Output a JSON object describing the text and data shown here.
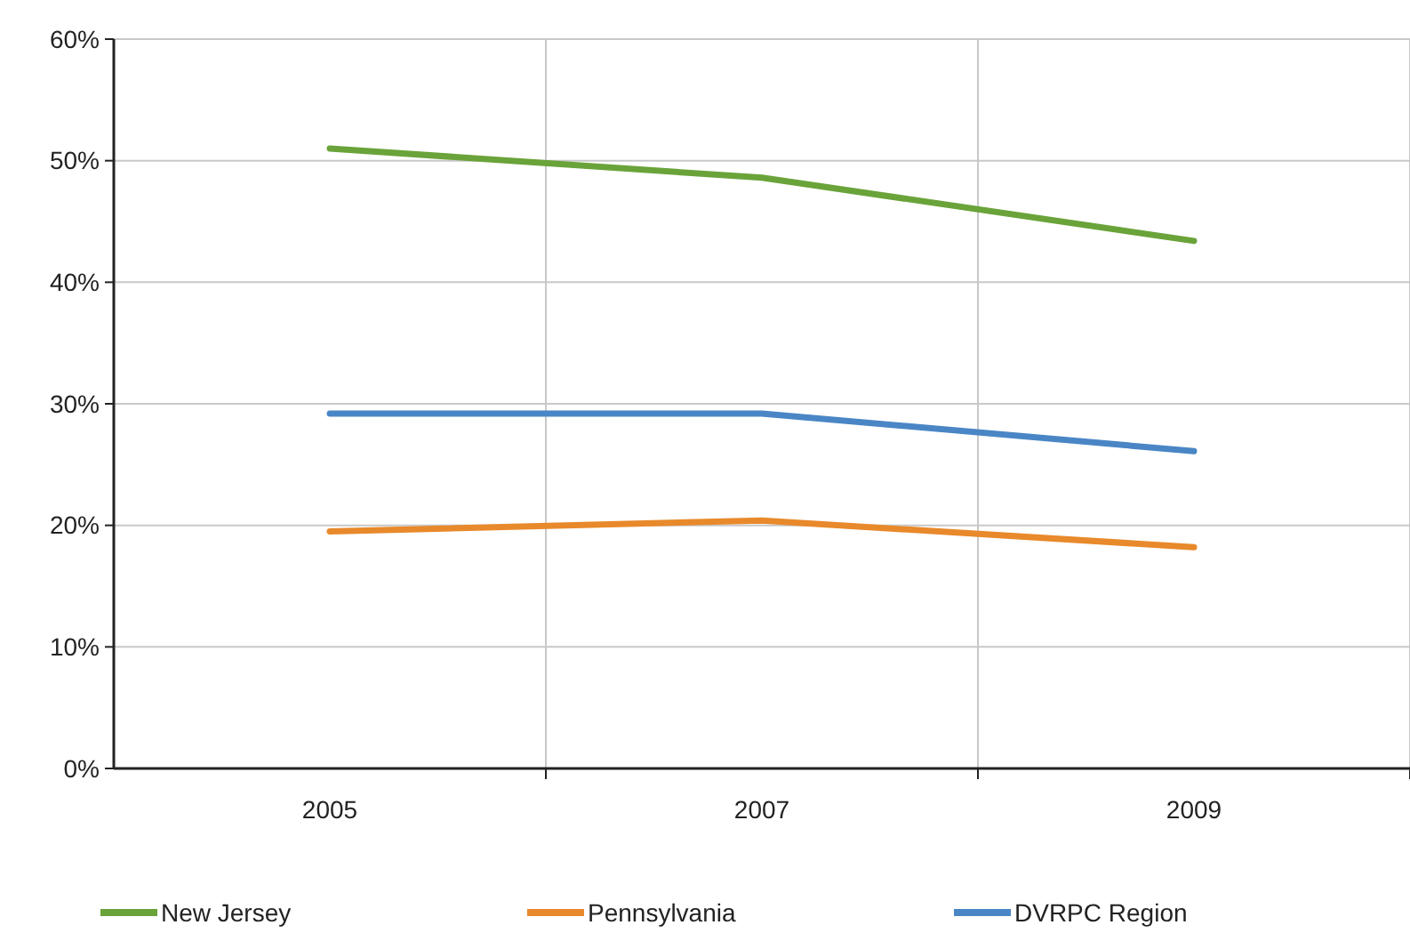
{
  "chart_data": {
    "type": "line",
    "categories": [
      "2005",
      "2007",
      "2009"
    ],
    "series": [
      {
        "name": "New Jersey",
        "color": "#6aa33a",
        "values": [
          51,
          48.6,
          43.4
        ]
      },
      {
        "name": "Pennsylvania",
        "color": "#e8892b",
        "values": [
          19.5,
          20.4,
          18.2
        ]
      },
      {
        "name": "DVRPC Region",
        "color": "#4a86c5",
        "values": [
          29.2,
          29.2,
          26.1
        ]
      }
    ],
    "ylim": [
      0,
      60
    ],
    "yticks": [
      {
        "value": 0,
        "label": "0%"
      },
      {
        "value": 10,
        "label": "10%"
      },
      {
        "value": 20,
        "label": "20%"
      },
      {
        "value": 30,
        "label": "30%"
      },
      {
        "value": 40,
        "label": "40%"
      },
      {
        "value": 50,
        "label": "50%"
      },
      {
        "value": 60,
        "label": "60%"
      }
    ],
    "grid": true,
    "legend": "bottom",
    "marker": "none",
    "line_style": "solid"
  }
}
